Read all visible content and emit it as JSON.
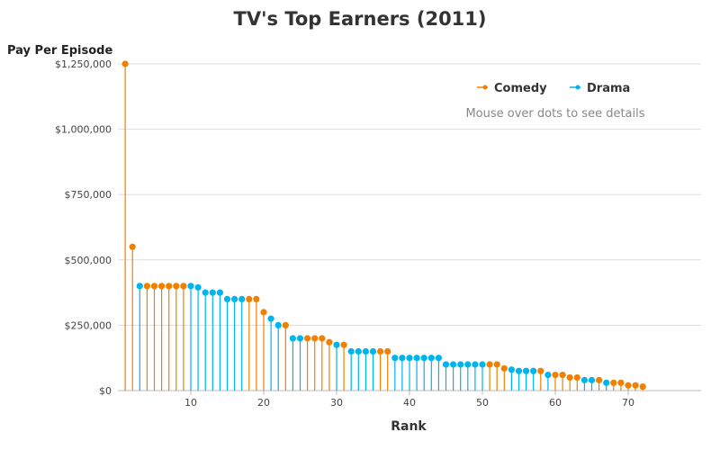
{
  "chart_data": {
    "type": "scatter",
    "title": "TV's Top Earners (2011)",
    "xlabel": "Rank",
    "ylabel": "Pay Per Episode",
    "xlim": [
      0,
      80
    ],
    "ylim": [
      0,
      1250000
    ],
    "xticks": [
      10,
      20,
      30,
      40,
      50,
      60,
      70
    ],
    "yticks": [
      0,
      250000,
      500000,
      750000,
      1000000,
      1250000
    ],
    "ytick_labels": [
      "$0",
      "$250,000",
      "$500,000",
      "$750,000",
      "$1,000,000",
      "$1,250,000"
    ],
    "grid": true,
    "legend_position": "top-right",
    "note": "Mouse over dots to see details",
    "series": [
      {
        "name": "Comedy",
        "color": "#f08000",
        "x": [
          1,
          2,
          4,
          5,
          6,
          7,
          8,
          9,
          18,
          19,
          20,
          23,
          26,
          27,
          28,
          29,
          31,
          36,
          37,
          51,
          52,
          53,
          58,
          60,
          61,
          62,
          63,
          66,
          68,
          69,
          70,
          71,
          72
        ],
        "y": [
          1250000,
          550000,
          400000,
          400000,
          400000,
          400000,
          400000,
          400000,
          350000,
          350000,
          300000,
          250000,
          200000,
          200000,
          200000,
          185000,
          175000,
          150000,
          150000,
          100000,
          100000,
          85000,
          75000,
          60000,
          60000,
          50000,
          50000,
          40000,
          30000,
          30000,
          20000,
          20000,
          15000
        ]
      },
      {
        "name": "Drama",
        "color": "#00b4ee",
        "x": [
          3,
          10,
          11,
          12,
          13,
          14,
          15,
          16,
          17,
          21,
          22,
          24,
          25,
          30,
          32,
          33,
          34,
          35,
          38,
          39,
          40,
          41,
          42,
          43,
          44,
          45,
          46,
          47,
          48,
          49,
          50,
          54,
          55,
          56,
          57,
          59,
          64,
          65,
          67
        ],
        "y": [
          400000,
          400000,
          395000,
          375000,
          375000,
          375000,
          350000,
          350000,
          350000,
          275000,
          250000,
          200000,
          200000,
          175000,
          150000,
          150000,
          150000,
          150000,
          125000,
          125000,
          125000,
          125000,
          125000,
          125000,
          125000,
          100000,
          100000,
          100000,
          100000,
          100000,
          100000,
          80000,
          75000,
          75000,
          75000,
          60000,
          40000,
          40000,
          30000
        ]
      }
    ]
  }
}
